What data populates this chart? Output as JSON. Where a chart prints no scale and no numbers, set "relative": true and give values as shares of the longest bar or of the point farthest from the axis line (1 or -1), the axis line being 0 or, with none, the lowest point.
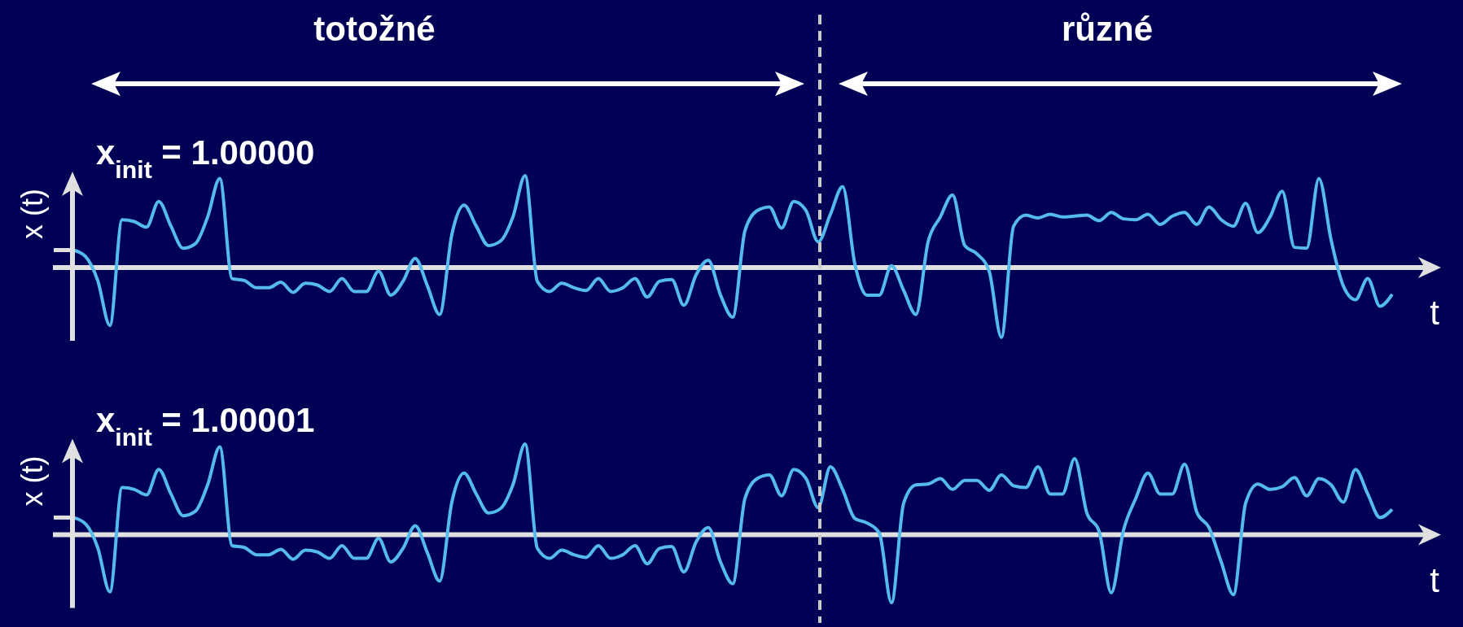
{
  "chart_data": [
    {
      "type": "line",
      "title": "x$_{init}$ = 1.00000",
      "xlabel": "t",
      "ylabel": "x (t)",
      "annotations": [
        "totožné",
        "různé"
      ],
      "relative": true,
      "tick_labels": false,
      "categories": [
        null,
        null,
        null,
        null,
        null,
        null,
        null,
        null,
        null,
        null,
        null,
        null,
        null,
        null,
        null,
        null,
        null,
        null,
        null,
        null,
        null,
        null,
        null,
        null,
        null,
        null,
        null,
        null,
        null,
        null,
        null,
        null,
        null,
        null,
        null,
        null,
        null,
        null,
        null,
        null,
        null,
        null,
        null,
        null,
        null,
        null,
        null,
        null,
        null,
        null,
        null,
        null,
        null,
        null,
        null,
        null,
        null,
        null,
        null,
        null,
        null,
        null,
        null,
        null,
        null,
        null,
        null,
        null,
        null,
        null,
        null,
        null,
        null,
        null,
        null,
        null,
        null,
        null,
        null,
        null,
        null,
        null,
        null,
        null,
        null,
        null,
        null,
        null,
        null,
        null,
        null,
        null,
        null,
        null,
        null,
        null,
        null,
        null,
        null,
        null,
        null,
        null,
        null,
        null,
        null,
        null,
        null,
        null,
        null
      ],
      "series": [
        {
          "color": "#55bbee",
          "values": [
            0.19,
            0.12,
            -0.14,
            -0.63,
            0.52,
            0.5,
            0.44,
            0.72,
            0.45,
            0.21,
            0.26,
            0.55,
            0.97,
            -0.12,
            -0.14,
            -0.22,
            -0.22,
            -0.16,
            -0.27,
            -0.17,
            -0.19,
            -0.26,
            -0.12,
            -0.26,
            -0.26,
            -0.04,
            -0.3,
            -0.15,
            0.1,
            -0.2,
            -0.51,
            0.36,
            0.68,
            0.45,
            0.24,
            0.29,
            0.55,
            1.0,
            -0.15,
            -0.26,
            -0.17,
            -0.22,
            -0.25,
            -0.12,
            -0.26,
            -0.22,
            -0.12,
            -0.32,
            -0.15,
            -0.13,
            -0.41,
            -0.08,
            0.08,
            -0.3,
            -0.54,
            0.4,
            0.62,
            0.66,
            0.43,
            0.72,
            0.62,
            0.28,
            0.58,
            0.88,
            0.04,
            -0.3,
            -0.3,
            0.02,
            -0.25,
            -0.51,
            0.28,
            0.55,
            0.79,
            0.24,
            0.15,
            -0.04,
            -0.76,
            0.45,
            0.57,
            0.54,
            0.58,
            0.55,
            0.56,
            0.57,
            0.51,
            0.6,
            0.53,
            0.52,
            0.58,
            0.47,
            0.56,
            0.6,
            0.47,
            0.66,
            0.52,
            0.45,
            0.7,
            0.38,
            0.55,
            0.83,
            0.22,
            0.21,
            0.97,
            0.3,
            -0.2,
            -0.35,
            -0.12,
            -0.42,
            -0.29
          ]
        }
      ],
      "line_style": "solid"
    },
    {
      "type": "line",
      "title": "x$_{init}$ = 1.00001",
      "xlabel": "t",
      "ylabel": "x (t)",
      "relative": true,
      "tick_labels": false,
      "categories": [
        null,
        null,
        null,
        null,
        null,
        null,
        null,
        null,
        null,
        null,
        null,
        null,
        null,
        null,
        null,
        null,
        null,
        null,
        null,
        null,
        null,
        null,
        null,
        null,
        null,
        null,
        null,
        null,
        null,
        null,
        null,
        null,
        null,
        null,
        null,
        null,
        null,
        null,
        null,
        null,
        null,
        null,
        null,
        null,
        null,
        null,
        null,
        null,
        null,
        null,
        null,
        null,
        null,
        null,
        null,
        null,
        null,
        null,
        null,
        null,
        null,
        null,
        null,
        null,
        null,
        null,
        null,
        null,
        null,
        null,
        null,
        null,
        null,
        null,
        null,
        null,
        null,
        null,
        null,
        null,
        null,
        null,
        null,
        null,
        null,
        null,
        null,
        null,
        null,
        null,
        null,
        null,
        null,
        null,
        null,
        null,
        null,
        null,
        null,
        null,
        null,
        null,
        null,
        null,
        null,
        null,
        null,
        null,
        null
      ],
      "series": [
        {
          "color": "#55bbee",
          "values": [
            0.19,
            0.12,
            -0.14,
            -0.63,
            0.52,
            0.5,
            0.44,
            0.72,
            0.45,
            0.21,
            0.26,
            0.55,
            0.97,
            -0.12,
            -0.14,
            -0.22,
            -0.22,
            -0.16,
            -0.27,
            -0.17,
            -0.19,
            -0.26,
            -0.12,
            -0.26,
            -0.26,
            -0.04,
            -0.3,
            -0.15,
            0.1,
            -0.2,
            -0.51,
            0.36,
            0.68,
            0.45,
            0.24,
            0.29,
            0.55,
            1.0,
            -0.15,
            -0.26,
            -0.17,
            -0.22,
            -0.25,
            -0.12,
            -0.26,
            -0.22,
            -0.12,
            -0.32,
            -0.15,
            -0.13,
            -0.41,
            -0.08,
            0.08,
            -0.3,
            -0.54,
            0.4,
            0.62,
            0.66,
            0.43,
            0.72,
            0.62,
            0.3,
            0.75,
            0.5,
            0.18,
            0.13,
            0.02,
            -0.75,
            0.35,
            0.55,
            0.56,
            0.62,
            0.5,
            0.6,
            0.6,
            0.49,
            0.66,
            0.54,
            0.52,
            0.75,
            0.45,
            0.45,
            0.84,
            0.24,
            0.04,
            -0.64,
            0.05,
            0.4,
            0.68,
            0.45,
            0.45,
            0.78,
            0.25,
            0.08,
            -0.3,
            -0.66,
            0.35,
            0.56,
            0.5,
            0.53,
            0.63,
            0.43,
            0.62,
            0.55,
            0.36,
            0.72,
            0.45,
            0.19,
            0.28
          ]
        }
      ],
      "line_style": "solid"
    }
  ]
}
